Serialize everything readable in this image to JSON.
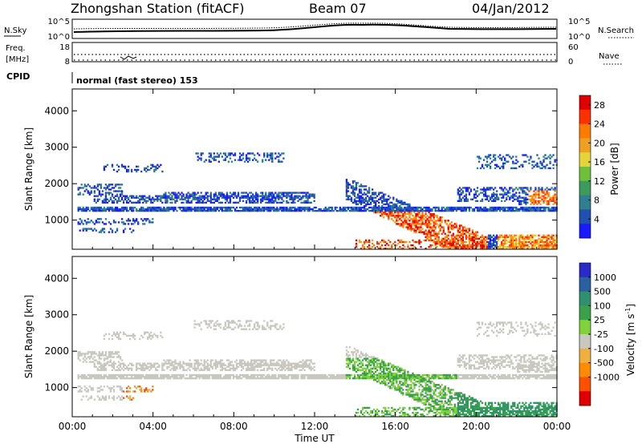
{
  "header": {
    "station": "Zhongshan Station (fitACF)",
    "beam": "Beam 07",
    "date": "04/Jan/2012"
  },
  "top_panel": {
    "left_label": "N.Sky",
    "left_ticks": [
      "10^5",
      "10^0"
    ],
    "right_label": "N.Search",
    "right_ticks": [
      "10^5",
      "10^0"
    ]
  },
  "freq_panel": {
    "left_label_1": "Freq.",
    "left_label_2": "[MHz]",
    "left_ticks": [
      "18",
      "8"
    ],
    "right_label": "Nave",
    "right_ticks": [
      "60",
      "0"
    ]
  },
  "cpid": {
    "label": "CPID",
    "text": "normal (fast stereo) 153"
  },
  "colors": {
    "power": [
      "#1a1aff",
      "#2050b0",
      "#2f7f8f",
      "#3c9a5a",
      "#6fbf3a",
      "#e6d33a",
      "#f0a020",
      "#ff7a00",
      "#ff3000",
      "#e00000"
    ],
    "velocity": [
      "#2a2ac8",
      "#2b5fa0",
      "#2f8f6f",
      "#3aa04a",
      "#7fd23c",
      "#c8c8c0",
      "#f0b040",
      "#ff8c00",
      "#ff5000",
      "#e00000"
    ]
  },
  "chart_data": [
    {
      "type": "heatmap",
      "name": "power",
      "xlabel": "Time UT",
      "ylabel": "Slant Range [km]",
      "xlim": [
        0,
        24
      ],
      "ylim": [
        200,
        4600
      ],
      "x_ticks": [
        "00:00",
        "04:00",
        "08:00",
        "12:00",
        "16:00",
        "20:00",
        "00:00"
      ],
      "y_ticks": [
        1000,
        2000,
        3000,
        4000
      ],
      "colorbar_label": "Power [dB]",
      "colorbar_ticks": [
        4,
        8,
        12,
        16,
        20,
        24,
        28
      ],
      "colorbar_range": [
        0,
        30
      ]
    },
    {
      "type": "heatmap",
      "name": "velocity",
      "xlabel": "Time UT",
      "ylabel": "Slant Range [km]",
      "xlim": [
        0,
        24
      ],
      "ylim": [
        200,
        4600
      ],
      "x_ticks": [
        "00:00",
        "04:00",
        "08:00",
        "12:00",
        "16:00",
        "20:00",
        "00:00"
      ],
      "y_ticks": [
        1000,
        2000,
        3000,
        4000
      ],
      "colorbar_label": "Velocity [m s",
      "colorbar_label_sup": "-1",
      "colorbar_label_end": "]",
      "colorbar_ticks": [
        "1000",
        "500",
        "100",
        "25",
        "-25",
        "-100",
        "-500",
        "-1000"
      ]
    }
  ]
}
